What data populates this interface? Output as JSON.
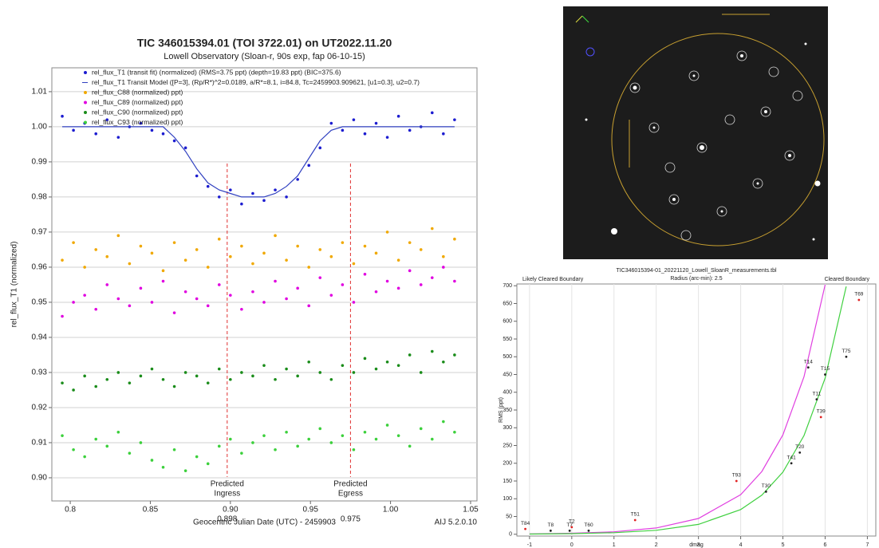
{
  "chart_data": [
    {
      "type": "scatter",
      "title": "TIC 346015394.01 (TOI 3722.01) on UT2022.11.20",
      "subtitle": "Lowell Observatory (Sloan-r, 90s exp, fap 06-10-15)",
      "xlabel": "Geocentric Julian Date (UTC) - 2459903",
      "ylabel": "rel_flux_T1 (normalized)",
      "footer": "AIJ 5.2.0.10",
      "xlim": [
        0.7885,
        1.054
      ],
      "xticks": [
        0.8,
        0.85,
        {
          "value": 0.9,
          "label": "0.90"
        },
        0.95,
        {
          "value": 1.0,
          "label": "1.00"
        },
        1.05
      ],
      "ylim": [
        0.8934,
        1.0168
      ],
      "yticks": [
        {
          "value": 0.9,
          "label": "0.90"
        },
        0.91,
        0.92,
        0.93,
        0.94,
        0.95,
        0.96,
        0.97,
        0.98,
        0.99,
        {
          "value": 1.0,
          "label": "1.00"
        },
        1.01
      ],
      "grid": true,
      "markers": [
        {
          "lines": [
            "Predicted",
            "Ingress"
          ],
          "x": 0.898,
          "color": "#e03030"
        },
        {
          "lines": [
            "Predicted",
            "Egress"
          ],
          "x": 0.975,
          "color": "#e03030"
        }
      ],
      "x": [
        0.795,
        0.802,
        0.809,
        0.816,
        0.823,
        0.83,
        0.837,
        0.844,
        0.851,
        0.858,
        0.865,
        0.872,
        0.879,
        0.886,
        0.893,
        0.9,
        0.907,
        0.914,
        0.921,
        0.928,
        0.935,
        0.942,
        0.949,
        0.956,
        0.963,
        0.97,
        0.977,
        0.984,
        0.991,
        0.998,
        1.005,
        1.012,
        1.019,
        1.026,
        1.033,
        1.04
      ],
      "series": [
        {
          "name": "rel_flux_T1 (transit fit) (normalized) (RMS=3.75 ppt) (depth=19.83 ppt) (BIC=375.6)",
          "color": "#1c1cd0",
          "mode": "points",
          "values": [
            1.003,
            0.999,
            1.001,
            0.998,
            1.002,
            0.997,
            1.0,
            1.001,
            0.999,
            0.998,
            0.996,
            0.994,
            0.986,
            0.983,
            0.98,
            0.982,
            0.978,
            0.981,
            0.979,
            0.982,
            0.98,
            0.985,
            0.989,
            0.994,
            1.001,
            0.999,
            1.002,
            0.998,
            1.001,
            0.997,
            1.003,
            0.999,
            1.0,
            1.004,
            0.998,
            1.002
          ]
        },
        {
          "name": "rel_flux_T1 Transit Model ([P=3], (Rp/R*)^2=0.0189, a/R*=8.1, i=84.8, Tc=2459903.909621, [u1=0.3], u2=0.7)",
          "color": "#3040c0",
          "mode": "line",
          "values": [
            1.0,
            1.0,
            1.0,
            1.0,
            1.0,
            1.0,
            1.0,
            1.0,
            1.0,
            1.0,
            0.997,
            0.993,
            0.988,
            0.984,
            0.982,
            0.981,
            0.98,
            0.98,
            0.98,
            0.981,
            0.983,
            0.986,
            0.991,
            0.996,
            0.999,
            1.0,
            1.0,
            1.0,
            1.0,
            1.0,
            1.0,
            1.0,
            1.0,
            1.0,
            1.0,
            1.0
          ]
        },
        {
          "name": "rel_flux_C88 (normalized) ppt)",
          "color": "#f0a800",
          "mode": "points",
          "values": [
            0.962,
            0.967,
            0.96,
            0.965,
            0.963,
            0.969,
            0.961,
            0.966,
            0.964,
            0.959,
            0.967,
            0.962,
            0.965,
            0.96,
            0.968,
            0.963,
            0.966,
            0.961,
            0.964,
            0.969,
            0.962,
            0.966,
            0.96,
            0.965,
            0.963,
            0.967,
            0.961,
            0.966,
            0.964,
            0.97,
            0.962,
            0.967,
            0.965,
            0.971,
            0.963,
            0.968
          ]
        },
        {
          "name": "rel_flux_C89 (normalized) ppt)",
          "color": "#e000e0",
          "mode": "points",
          "values": [
            0.946,
            0.95,
            0.952,
            0.948,
            0.955,
            0.951,
            0.949,
            0.954,
            0.95,
            0.956,
            0.947,
            0.953,
            0.951,
            0.949,
            0.955,
            0.952,
            0.948,
            0.953,
            0.95,
            0.956,
            0.951,
            0.954,
            0.949,
            0.957,
            0.952,
            0.955,
            0.95,
            0.958,
            0.953,
            0.956,
            0.954,
            0.959,
            0.955,
            0.957,
            0.96,
            0.956
          ]
        },
        {
          "name": "rel_flux_C90 (normalized) ppt)",
          "color": "#1a8c1a",
          "mode": "points",
          "values": [
            0.927,
            0.925,
            0.929,
            0.926,
            0.928,
            0.93,
            0.927,
            0.929,
            0.931,
            0.928,
            0.926,
            0.93,
            0.929,
            0.927,
            0.931,
            0.928,
            0.93,
            0.929,
            0.932,
            0.928,
            0.931,
            0.929,
            0.933,
            0.93,
            0.928,
            0.932,
            0.93,
            0.934,
            0.931,
            0.933,
            0.932,
            0.935,
            0.93,
            0.936,
            0.933,
            0.935
          ]
        },
        {
          "name": "rel_flux_C93 (normalized) ppt)",
          "color": "#3cd03c",
          "mode": "points",
          "values": [
            0.912,
            0.908,
            0.906,
            0.911,
            0.909,
            0.913,
            0.907,
            0.91,
            0.905,
            0.903,
            0.908,
            0.902,
            0.906,
            0.904,
            0.909,
            0.911,
            0.907,
            0.91,
            0.912,
            0.908,
            0.913,
            0.909,
            0.911,
            0.914,
            0.91,
            0.912,
            0.908,
            0.913,
            0.911,
            0.915,
            0.912,
            0.909,
            0.914,
            0.911,
            0.916,
            0.913
          ]
        }
      ]
    },
    {
      "type": "scatter",
      "title": "TIC346015394-01_20221120_Lowell_SloanR_measurements.tbl",
      "subtitle": "Radius (arc-min): 2.5",
      "xlabel": "dmag",
      "ylabel": "RMS (ppt)",
      "xlim": [
        -1.3,
        7.2
      ],
      "xticks": [
        -1,
        0,
        1,
        2,
        3,
        4,
        5,
        6,
        7
      ],
      "ylim": [
        -5,
        705
      ],
      "yticks": [
        0,
        50,
        100,
        150,
        200,
        250,
        300,
        350,
        400,
        450,
        500,
        550,
        600,
        650,
        700
      ],
      "grid": true,
      "series": [
        {
          "name": "Likely Cleared Boundary",
          "color": "#e040e0",
          "mode": "line",
          "x": [
            -1,
            0,
            1,
            2,
            3,
            4,
            4.5,
            5,
            5.5,
            6
          ],
          "values": [
            1.1,
            2.8,
            7.0,
            17.7,
            44.4,
            111.5,
            176.7,
            280,
            444,
            703
          ]
        },
        {
          "name": "Cleared Boundary",
          "color": "#40d040",
          "mode": "line",
          "x": [
            -1,
            0,
            1,
            2,
            3,
            4,
            4.5,
            5,
            5.5,
            6,
            6.5
          ],
          "values": [
            0.7,
            1.75,
            4.4,
            11.1,
            27.7,
            69.7,
            110,
            175,
            278,
            440,
            698
          ]
        },
        {
          "color": "#222222",
          "mode": "labeled",
          "labels": [
            "T8",
            "T7",
            "T60",
            "T14",
            "T15",
            "T75",
            "T11",
            "T20",
            "T41",
            "T30"
          ],
          "x": [
            -0.5,
            -0.05,
            0.4,
            5.6,
            6.0,
            6.5,
            5.8,
            5.4,
            5.2,
            4.6
          ],
          "values": [
            10,
            10,
            10,
            470,
            450,
            500,
            380,
            230,
            200,
            120
          ]
        },
        {
          "color": "#e02020",
          "mode": "labeled",
          "labels": [
            "T84",
            "T2",
            "T51",
            "T93",
            "T39",
            "T69"
          ],
          "x": [
            -1.1,
            0.0,
            1.5,
            3.9,
            5.9,
            6.8
          ],
          "values": [
            15,
            20,
            40,
            150,
            330,
            660
          ]
        }
      ]
    }
  ]
}
